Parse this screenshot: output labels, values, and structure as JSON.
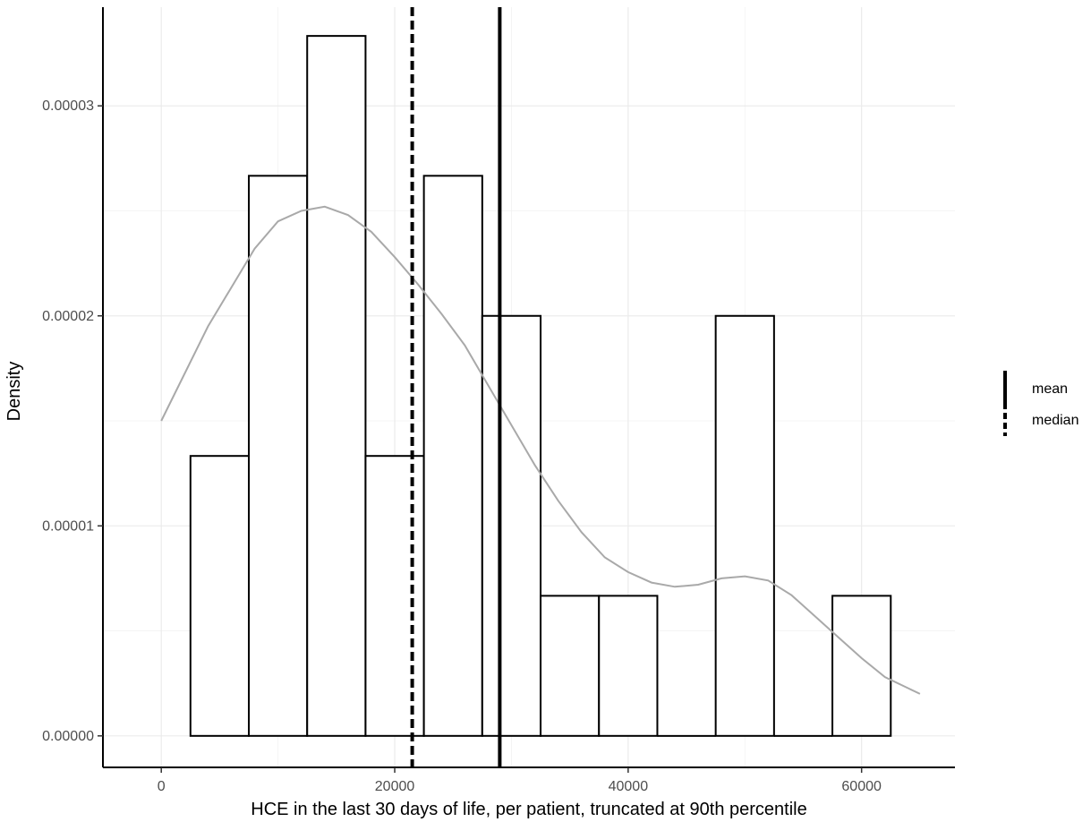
{
  "chart_data": {
    "type": "histogram",
    "xlabel": "HCE in the last 30 days of life, per patient, truncated at 90th percentile",
    "ylabel": "Density",
    "xlim": [
      -5000,
      68000
    ],
    "ylim": [
      -1.5e-06,
      3.47e-05
    ],
    "x_ticks": [
      0,
      20000,
      40000,
      60000
    ],
    "x_tick_labels": [
      "0",
      "20000",
      "40000",
      "60000"
    ],
    "y_ticks": [
      0,
      1e-05,
      2e-05,
      3e-05
    ],
    "y_tick_labels": [
      "0.00000",
      "0.00001",
      "0.00002",
      "0.00003"
    ],
    "grid": true,
    "bins": [
      {
        "x0": 2500,
        "x1": 7500,
        "density": 1.333e-05
      },
      {
        "x0": 7500,
        "x1": 12500,
        "density": 2.667e-05
      },
      {
        "x0": 12500,
        "x1": 17500,
        "density": 3.333e-05
      },
      {
        "x0": 17500,
        "x1": 22500,
        "density": 1.333e-05
      },
      {
        "x0": 22500,
        "x1": 27500,
        "density": 2.667e-05
      },
      {
        "x0": 27500,
        "x1": 32500,
        "density": 2e-05
      },
      {
        "x0": 32500,
        "x1": 37500,
        "density": 6.67e-06
      },
      {
        "x0": 37500,
        "x1": 42500,
        "density": 6.67e-06
      },
      {
        "x0": 42500,
        "x1": 47500,
        "density": 0
      },
      {
        "x0": 47500,
        "x1": 52500,
        "density": 2e-05
      },
      {
        "x0": 52500,
        "x1": 57500,
        "density": 0
      },
      {
        "x0": 57500,
        "x1": 62500,
        "density": 6.67e-06
      }
    ],
    "density_curve": {
      "color": "#a9a9a9",
      "x": [
        0,
        4000,
        8000,
        10000,
        12000,
        14000,
        16000,
        18000,
        20000,
        22000,
        24000,
        26000,
        28000,
        30000,
        32000,
        34000,
        36000,
        38000,
        40000,
        42000,
        44000,
        46000,
        48000,
        50000,
        52000,
        54000,
        56000,
        58000,
        60000,
        62000,
        65000
      ],
      "y": [
        1.5e-05,
        1.95e-05,
        2.32e-05,
        2.45e-05,
        2.5e-05,
        2.52e-05,
        2.48e-05,
        2.4e-05,
        2.28e-05,
        2.15e-05,
        2.01e-05,
        1.86e-05,
        1.67e-05,
        1.48e-05,
        1.29e-05,
        1.12e-05,
        9.7e-06,
        8.5e-06,
        7.8e-06,
        7.3e-06,
        7.1e-06,
        7.2e-06,
        7.5e-06,
        7.6e-06,
        7.4e-06,
        6.7e-06,
        5.7e-06,
        4.7e-06,
        3.7e-06,
        2.8e-06,
        2e-06
      ]
    },
    "vlines": [
      {
        "name": "mean",
        "x": 29000,
        "style": "solid"
      },
      {
        "name": "median",
        "x": 21500,
        "style": "dashed"
      }
    ],
    "legend": {
      "placement": "right",
      "entries": [
        {
          "label": "mean",
          "style": "solid"
        },
        {
          "label": "median",
          "style": "dashed"
        }
      ]
    }
  }
}
